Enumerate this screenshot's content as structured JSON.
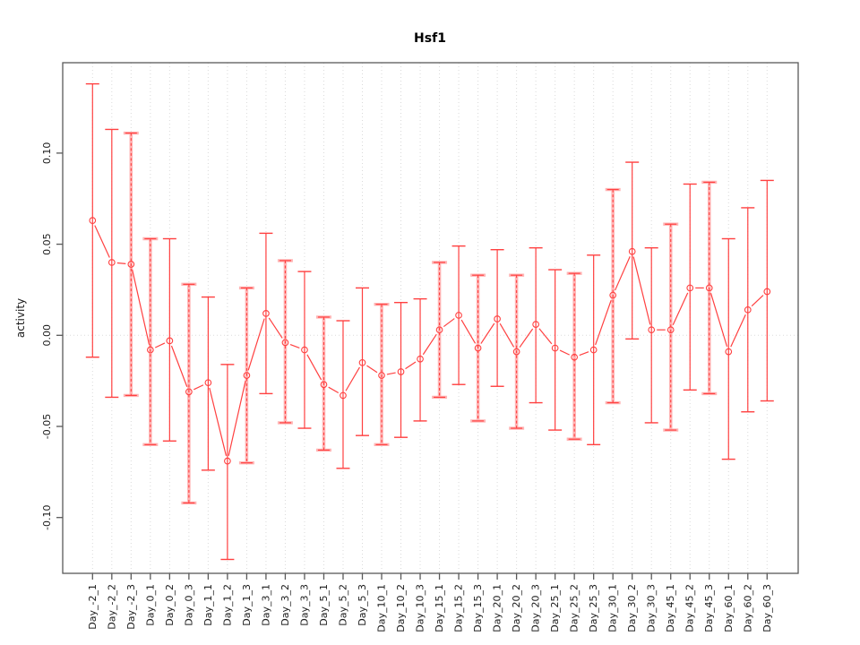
{
  "chart_data": {
    "type": "line",
    "subtype": "points-with-error-bars",
    "title": "Hsf1",
    "xlabel": "",
    "ylabel": "activity",
    "legend": null,
    "grid": "vertical dotted gridline at every category; dotted horizontal line at y=0",
    "ylim": [
      -0.131,
      0.15
    ],
    "y_tick_values": [
      0.1,
      0.05,
      0.0,
      -0.05,
      -0.1
    ],
    "y_tick_labels": [
      "0.10",
      "0.05",
      "0.00",
      "-0.05",
      "-0.10"
    ],
    "categories": [
      "Day_-2_1",
      "Day_-2_2",
      "Day_-2_3",
      "Day_0_1",
      "Day_0_2",
      "Day_0_3",
      "Day_1_1",
      "Day_1_2",
      "Day_1_3",
      "Day_3_1",
      "Day_3_2",
      "Day_3_3",
      "Day_5_1",
      "Day_5_2",
      "Day_5_3",
      "Day_10_1",
      "Day_10_2",
      "Day_10_3",
      "Day_15_1",
      "Day_15_2",
      "Day_15_3",
      "Day_20_1",
      "Day_20_2",
      "Day_20_3",
      "Day_25_1",
      "Day_25_2",
      "Day_25_3",
      "Day_30_1",
      "Day_30_2",
      "Day_30_3",
      "Day_45_1",
      "Day_45_2",
      "Day_45_3",
      "Day_60_1",
      "Day_60_2",
      "Day_60_3"
    ],
    "series": [
      {
        "name": "activity",
        "mean": [
          0.063,
          0.04,
          0.039,
          -0.008,
          -0.003,
          -0.031,
          -0.026,
          -0.069,
          -0.022,
          0.012,
          -0.004,
          -0.008,
          -0.027,
          -0.033,
          -0.015,
          -0.022,
          -0.02,
          -0.013,
          0.003,
          0.011,
          -0.007,
          0.009,
          -0.009,
          0.006,
          -0.007,
          -0.012,
          -0.008,
          0.022,
          0.046,
          0.003,
          0.003,
          0.026,
          0.026,
          -0.009,
          0.014,
          0.024
        ],
        "upper": [
          0.138,
          0.113,
          0.111,
          0.053,
          0.053,
          0.028,
          0.021,
          -0.016,
          0.026,
          0.056,
          0.041,
          0.035,
          0.01,
          0.008,
          0.026,
          0.017,
          0.018,
          0.02,
          0.04,
          0.049,
          0.033,
          0.047,
          0.033,
          0.048,
          0.036,
          0.034,
          0.044,
          0.08,
          0.095,
          0.048,
          0.061,
          0.083,
          0.084,
          0.053,
          0.07,
          0.085
        ],
        "lower": [
          -0.012,
          -0.034,
          -0.033,
          -0.06,
          -0.058,
          -0.092,
          -0.074,
          -0.123,
          -0.07,
          -0.032,
          -0.048,
          -0.051,
          -0.063,
          -0.073,
          -0.055,
          -0.06,
          -0.056,
          -0.047,
          -0.034,
          -0.027,
          -0.047,
          -0.028,
          -0.051,
          -0.037,
          -0.052,
          -0.057,
          -0.06,
          -0.037,
          -0.002,
          -0.048,
          -0.052,
          -0.03,
          -0.032,
          -0.068,
          -0.042,
          -0.036
        ]
      }
    ],
    "light_pink_bar_indices": [
      2,
      3,
      5,
      8,
      10,
      12,
      15,
      18,
      20,
      22,
      25,
      27,
      30,
      32
    ],
    "colors": {
      "point": "#ff4040",
      "line": "#ff4040",
      "error_bar": "#ff4040",
      "error_bar_light": "#ffb5b5",
      "gridline": "#dadada",
      "zero_line": "#dcdcdc",
      "axis_frame": "#595959",
      "tick_label": "#1a1a1a",
      "title": "#000000"
    }
  }
}
